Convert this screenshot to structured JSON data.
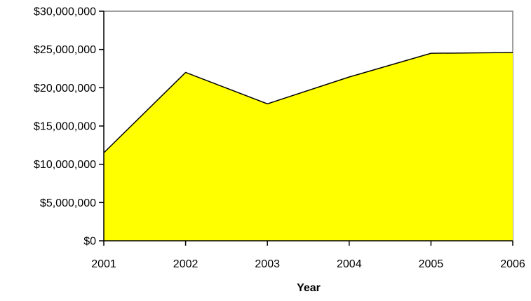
{
  "chart_data": {
    "type": "area",
    "title": "",
    "xlabel": "Year",
    "ylabel": "",
    "x": [
      "2001",
      "2002",
      "2003",
      "2004",
      "2005",
      "2006"
    ],
    "series": [
      {
        "values": [
          11500000,
          22000000,
          17900000,
          21400000,
          24500000,
          24600000
        ],
        "color": "#FFFF00"
      }
    ],
    "ylim": [
      0,
      30000000
    ],
    "y_ticks": [
      0,
      5000000,
      10000000,
      15000000,
      20000000,
      25000000,
      30000000
    ],
    "y_tick_labels": [
      "$0",
      "$5,000,000",
      "$10,000,000",
      "$15,000,000",
      "$20,000,000",
      "$25,000,000",
      "$30,000,000"
    ],
    "grid": false,
    "legend": "none",
    "fill_color": "#FFFF00",
    "line_color": "#000000"
  }
}
